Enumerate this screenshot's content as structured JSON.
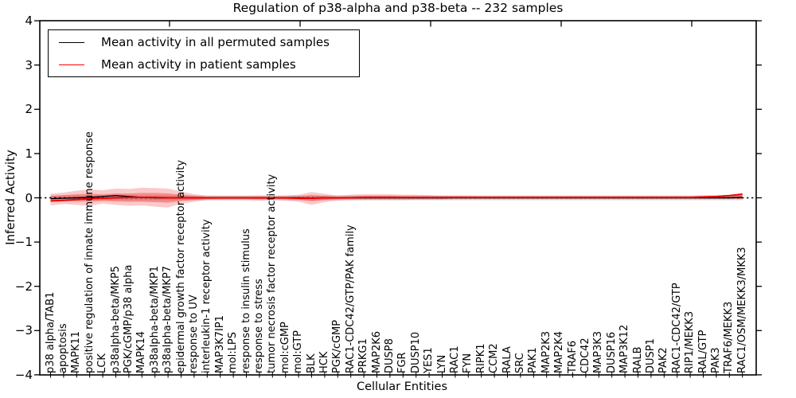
{
  "title": "Regulation of p38-alpha and p38-beta -- 232 samples",
  "axes": {
    "xlabel": "Cellular Entities",
    "ylabel": "Inferred Activity",
    "ylim": [
      -4,
      4
    ],
    "ytick_values": [
      4,
      3,
      2,
      1,
      0,
      -1,
      -2,
      -3,
      -4
    ],
    "ytick_labels": [
      "4",
      "3",
      "2",
      "1",
      "0",
      "−1",
      "−2",
      "−3",
      "−4"
    ]
  },
  "legend": {
    "items": [
      {
        "label": "Mean activity in all permuted samples",
        "color": "#000000"
      },
      {
        "label": "Mean activity in patient samples",
        "color": "#ff0000"
      }
    ]
  },
  "colors": {
    "zero_line": "#000000",
    "spine": "#000000",
    "background": "#ffffff"
  },
  "chart_data": {
    "type": "line",
    "title": "Regulation of p38-alpha and p38-beta -- 232 samples",
    "xlabel": "Cellular Entities",
    "ylabel": "Inferred Activity",
    "ylim": [
      -4,
      4
    ],
    "grid": false,
    "legend_position": "upper left",
    "zero_line_style": "dotted",
    "categories": [
      "p38 alpha/TAB1",
      "apoptosis",
      "MAPK11",
      "positive regulation of innate immune response",
      "LCK",
      "p38alpha-beta/MKP5",
      "PGK/cGMP/p38 alpha",
      "MAPK14",
      "p38alpha-beta/MKP1",
      "p38alpha-beta/MKP7",
      "epidermal growth factor receptor activity",
      "response to UV",
      "interleukin-1 receptor activity",
      "MAP3K7IP1",
      "mol:LPS",
      "response to insulin stimulus",
      "response to stress",
      "tumor necrosis factor receptor activity",
      "mol:cGMP",
      "mol:GTP",
      "BLK",
      "HCK",
      "PGK/cGMP",
      "RAC1-CDC42/GTP/PAK family",
      "PRKG1",
      "MAP2K6",
      "DUSP8",
      "FGR",
      "DUSP10",
      "YES1",
      "LYN",
      "RAC1",
      "FYN",
      "RIPK1",
      "CCM2",
      "RALA",
      "SRC",
      "PAK1",
      "MAP2K3",
      "MAP2K4",
      "TRAF6",
      "CDC42",
      "MAP3K3",
      "DUSP16",
      "MAP3K12",
      "RALB",
      "DUSP1",
      "PAK2",
      "RAC1-CDC42/GTP",
      "RIP1/MEKK3",
      "RAL/GTP",
      "PAK3",
      "TRAF6/MEKK3",
      "RAC1/OSM/MEKK3/MKK3"
    ],
    "series": [
      {
        "name": "Mean activity in all permuted samples",
        "color": "#000000",
        "values": [
          -0.02,
          -0.01,
          0.0,
          0.01,
          0.03,
          0.05,
          0.03,
          0.01,
          0.0,
          0.0,
          0.0,
          0.0,
          0.0,
          0.0,
          0.0,
          0.0,
          0.0,
          0.0,
          0.0,
          0.0,
          -0.01,
          0.0,
          0.0,
          0.0,
          0.0,
          0.0,
          0.0,
          0.0,
          0.0,
          0.0,
          0.0,
          0.0,
          0.0,
          0.0,
          0.0,
          0.0,
          0.0,
          0.0,
          0.0,
          0.0,
          0.0,
          0.0,
          0.0,
          0.0,
          0.0,
          0.0,
          0.0,
          0.0,
          0.0,
          0.0,
          0.0,
          0.0,
          0.0,
          0.01
        ]
      },
      {
        "name": "Mean activity in patient samples",
        "color": "#f00000",
        "values": [
          -0.07,
          -0.06,
          -0.04,
          -0.02,
          -0.01,
          0.0,
          0.01,
          0.01,
          0.01,
          0.0,
          0.0,
          0.0,
          0.0,
          0.0,
          0.0,
          0.0,
          0.0,
          0.0,
          0.0,
          -0.01,
          -0.01,
          0.0,
          0.0,
          0.0,
          0.01,
          0.01,
          0.01,
          0.01,
          0.01,
          0.01,
          0.01,
          0.01,
          0.01,
          0.01,
          0.01,
          0.01,
          0.01,
          0.01,
          0.01,
          0.01,
          0.01,
          0.01,
          0.01,
          0.01,
          0.01,
          0.01,
          0.01,
          0.01,
          0.01,
          0.01,
          0.02,
          0.03,
          0.05,
          0.08
        ]
      }
    ],
    "bands": [
      {
        "name": "permuted-samples-band",
        "color": "rgba(125,125,125,0.30)",
        "upper_const": 0.055,
        "lower_const": -0.055
      },
      {
        "name": "patient-band-outer",
        "color": "rgba(235,45,45,0.25)",
        "upper": [
          0.09,
          0.12,
          0.16,
          0.19,
          0.17,
          0.21,
          0.2,
          0.23,
          0.22,
          0.21,
          0.14,
          0.08,
          0.04,
          0.04,
          0.04,
          0.04,
          0.05,
          0.04,
          0.05,
          0.07,
          0.13,
          0.09,
          0.05,
          0.07,
          0.08,
          0.08,
          0.08,
          0.07,
          0.07,
          0.06,
          0.05,
          0.05,
          0.05,
          0.04,
          0.04,
          0.04,
          0.04,
          0.04,
          0.04,
          0.04,
          0.04,
          0.04,
          0.04,
          0.04,
          0.04,
          0.04,
          0.04,
          0.04,
          0.04,
          0.04,
          0.05,
          0.05,
          0.06,
          0.12
        ],
        "lower": [
          -0.17,
          -0.14,
          -0.16,
          -0.18,
          -0.13,
          -0.16,
          -0.18,
          -0.17,
          -0.2,
          -0.22,
          -0.13,
          -0.09,
          -0.05,
          -0.05,
          -0.05,
          -0.05,
          -0.06,
          -0.05,
          -0.06,
          -0.09,
          -0.16,
          -0.1,
          -0.06,
          -0.05,
          -0.05,
          -0.05,
          -0.05,
          -0.05,
          -0.04,
          -0.04,
          -0.04,
          -0.03,
          -0.03,
          -0.03,
          -0.03,
          -0.03,
          -0.03,
          -0.03,
          -0.03,
          -0.03,
          -0.03,
          -0.03,
          -0.03,
          -0.03,
          -0.03,
          -0.03,
          -0.03,
          -0.03,
          -0.03,
          -0.03,
          -0.03,
          -0.03,
          -0.03,
          -0.03
        ]
      },
      {
        "name": "patient-band-inner",
        "color": "rgba(235,45,45,0.38)",
        "upper": [
          0.04,
          0.06,
          0.08,
          0.09,
          0.08,
          0.1,
          0.1,
          0.11,
          0.11,
          0.1,
          0.07,
          0.04,
          0.02,
          0.02,
          0.02,
          0.02,
          0.02,
          0.02,
          0.02,
          0.03,
          0.06,
          0.04,
          0.02,
          0.03,
          0.04,
          0.04,
          0.04,
          0.03,
          0.03,
          0.03,
          0.02,
          0.02,
          0.02,
          0.02,
          0.02,
          0.02,
          0.02,
          0.02,
          0.02,
          0.02,
          0.02,
          0.02,
          0.02,
          0.02,
          0.02,
          0.02,
          0.02,
          0.02,
          0.02,
          0.02,
          0.02,
          0.02,
          0.03,
          0.06
        ],
        "lower": [
          -0.09,
          -0.07,
          -0.08,
          -0.09,
          -0.07,
          -0.08,
          -0.09,
          -0.09,
          -0.1,
          -0.11,
          -0.07,
          -0.05,
          -0.03,
          -0.02,
          -0.02,
          -0.02,
          -0.03,
          -0.02,
          -0.03,
          -0.04,
          -0.08,
          -0.05,
          -0.03,
          -0.02,
          -0.02,
          -0.02,
          -0.02,
          -0.02,
          -0.02,
          -0.02,
          -0.02,
          -0.01,
          -0.01,
          -0.01,
          -0.01,
          -0.01,
          -0.01,
          -0.01,
          -0.01,
          -0.01,
          -0.01,
          -0.01,
          -0.01,
          -0.01,
          -0.01,
          -0.01,
          -0.01,
          -0.01,
          -0.01,
          -0.01,
          -0.01,
          -0.01,
          -0.01,
          -0.03
        ]
      }
    ]
  }
}
